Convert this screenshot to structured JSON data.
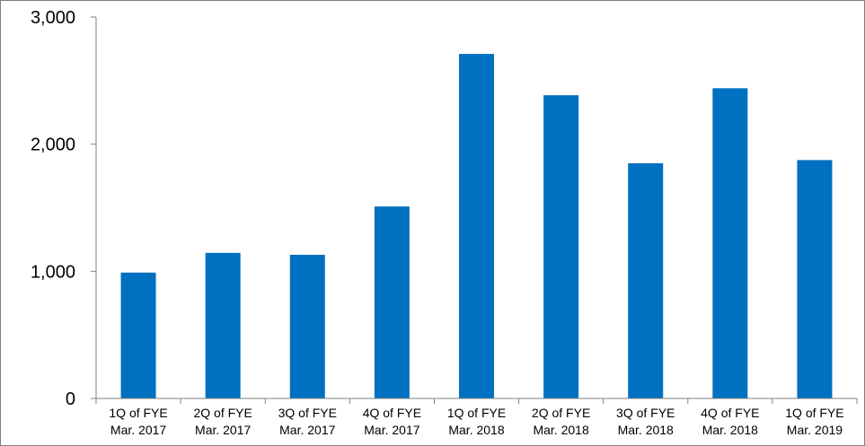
{
  "chart_data": {
    "type": "bar",
    "title": "",
    "xlabel": "",
    "ylabel": "",
    "categories": [
      [
        "1Q of FYE",
        "Mar. 2017"
      ],
      [
        "2Q of FYE",
        "Mar. 2017"
      ],
      [
        "3Q of FYE",
        "Mar. 2017"
      ],
      [
        "4Q of FYE",
        "Mar. 2017"
      ],
      [
        "1Q of FYE",
        "Mar. 2018"
      ],
      [
        "2Q of FYE",
        "Mar. 2018"
      ],
      [
        "3Q of FYE",
        "Mar. 2018"
      ],
      [
        "4Q of FYE",
        "Mar. 2018"
      ],
      [
        "1Q of FYE",
        "Mar. 2019"
      ]
    ],
    "values": [
      990,
      1145,
      1130,
      1510,
      2710,
      2385,
      1850,
      2440,
      1875
    ],
    "ylim": [
      0,
      3000
    ],
    "yticks": [
      0,
      1000,
      2000,
      3000
    ],
    "ytick_labels": [
      "0",
      "1,000",
      "2,000",
      "3,000"
    ],
    "grid": false,
    "legend": "none",
    "colors": {
      "bar": "#0070C0",
      "axis": "#808080"
    }
  }
}
